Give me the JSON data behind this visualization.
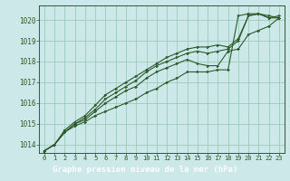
{
  "background_color": "#cce8e8",
  "plot_bg_color": "#cce8e8",
  "label_bar_color": "#2d6b2d",
  "label_text_color": "#ffffff",
  "grid_color": "#99ccbb",
  "line_color": "#2d5a2d",
  "marker_color": "#2d5a2d",
  "xlabel": "Graphe pression niveau de la mer (hPa)",
  "ylim": [
    1013.6,
    1020.7
  ],
  "xlim": [
    -0.5,
    23.5
  ],
  "yticks": [
    1014,
    1015,
    1016,
    1017,
    1018,
    1019,
    1020
  ],
  "xticks": [
    0,
    1,
    2,
    3,
    4,
    5,
    6,
    7,
    8,
    9,
    10,
    11,
    12,
    13,
    14,
    15,
    16,
    17,
    18,
    19,
    20,
    21,
    22,
    23
  ],
  "series": [
    [
      1013.7,
      1014.0,
      1014.6,
      1014.9,
      1015.1,
      1015.4,
      1015.6,
      1015.8,
      1016.0,
      1016.2,
      1016.5,
      1016.7,
      1017.0,
      1017.2,
      1017.5,
      1017.5,
      1017.5,
      1017.6,
      1017.6,
      1020.2,
      1020.3,
      1020.3,
      1020.1,
      1020.1
    ],
    [
      1013.7,
      1014.0,
      1014.6,
      1015.0,
      1015.2,
      1015.6,
      1016.0,
      1016.3,
      1016.6,
      1016.8,
      1017.2,
      1017.5,
      1017.7,
      1017.9,
      1018.1,
      1017.9,
      1017.8,
      1017.8,
      1018.5,
      1018.6,
      1019.3,
      1019.5,
      1019.7,
      1020.1
    ],
    [
      1013.7,
      1014.0,
      1014.6,
      1015.0,
      1015.3,
      1015.7,
      1016.2,
      1016.5,
      1016.8,
      1017.1,
      1017.5,
      1017.8,
      1018.0,
      1018.2,
      1018.4,
      1018.5,
      1018.4,
      1018.5,
      1018.6,
      1019.0,
      1020.2,
      1020.3,
      1020.1,
      1020.2
    ],
    [
      1013.7,
      1014.0,
      1014.7,
      1015.1,
      1015.4,
      1015.9,
      1016.4,
      1016.7,
      1017.0,
      1017.3,
      1017.6,
      1017.9,
      1018.2,
      1018.4,
      1018.6,
      1018.7,
      1018.7,
      1018.8,
      1018.7,
      1019.1,
      1020.2,
      1020.3,
      1020.2,
      1020.1
    ]
  ]
}
